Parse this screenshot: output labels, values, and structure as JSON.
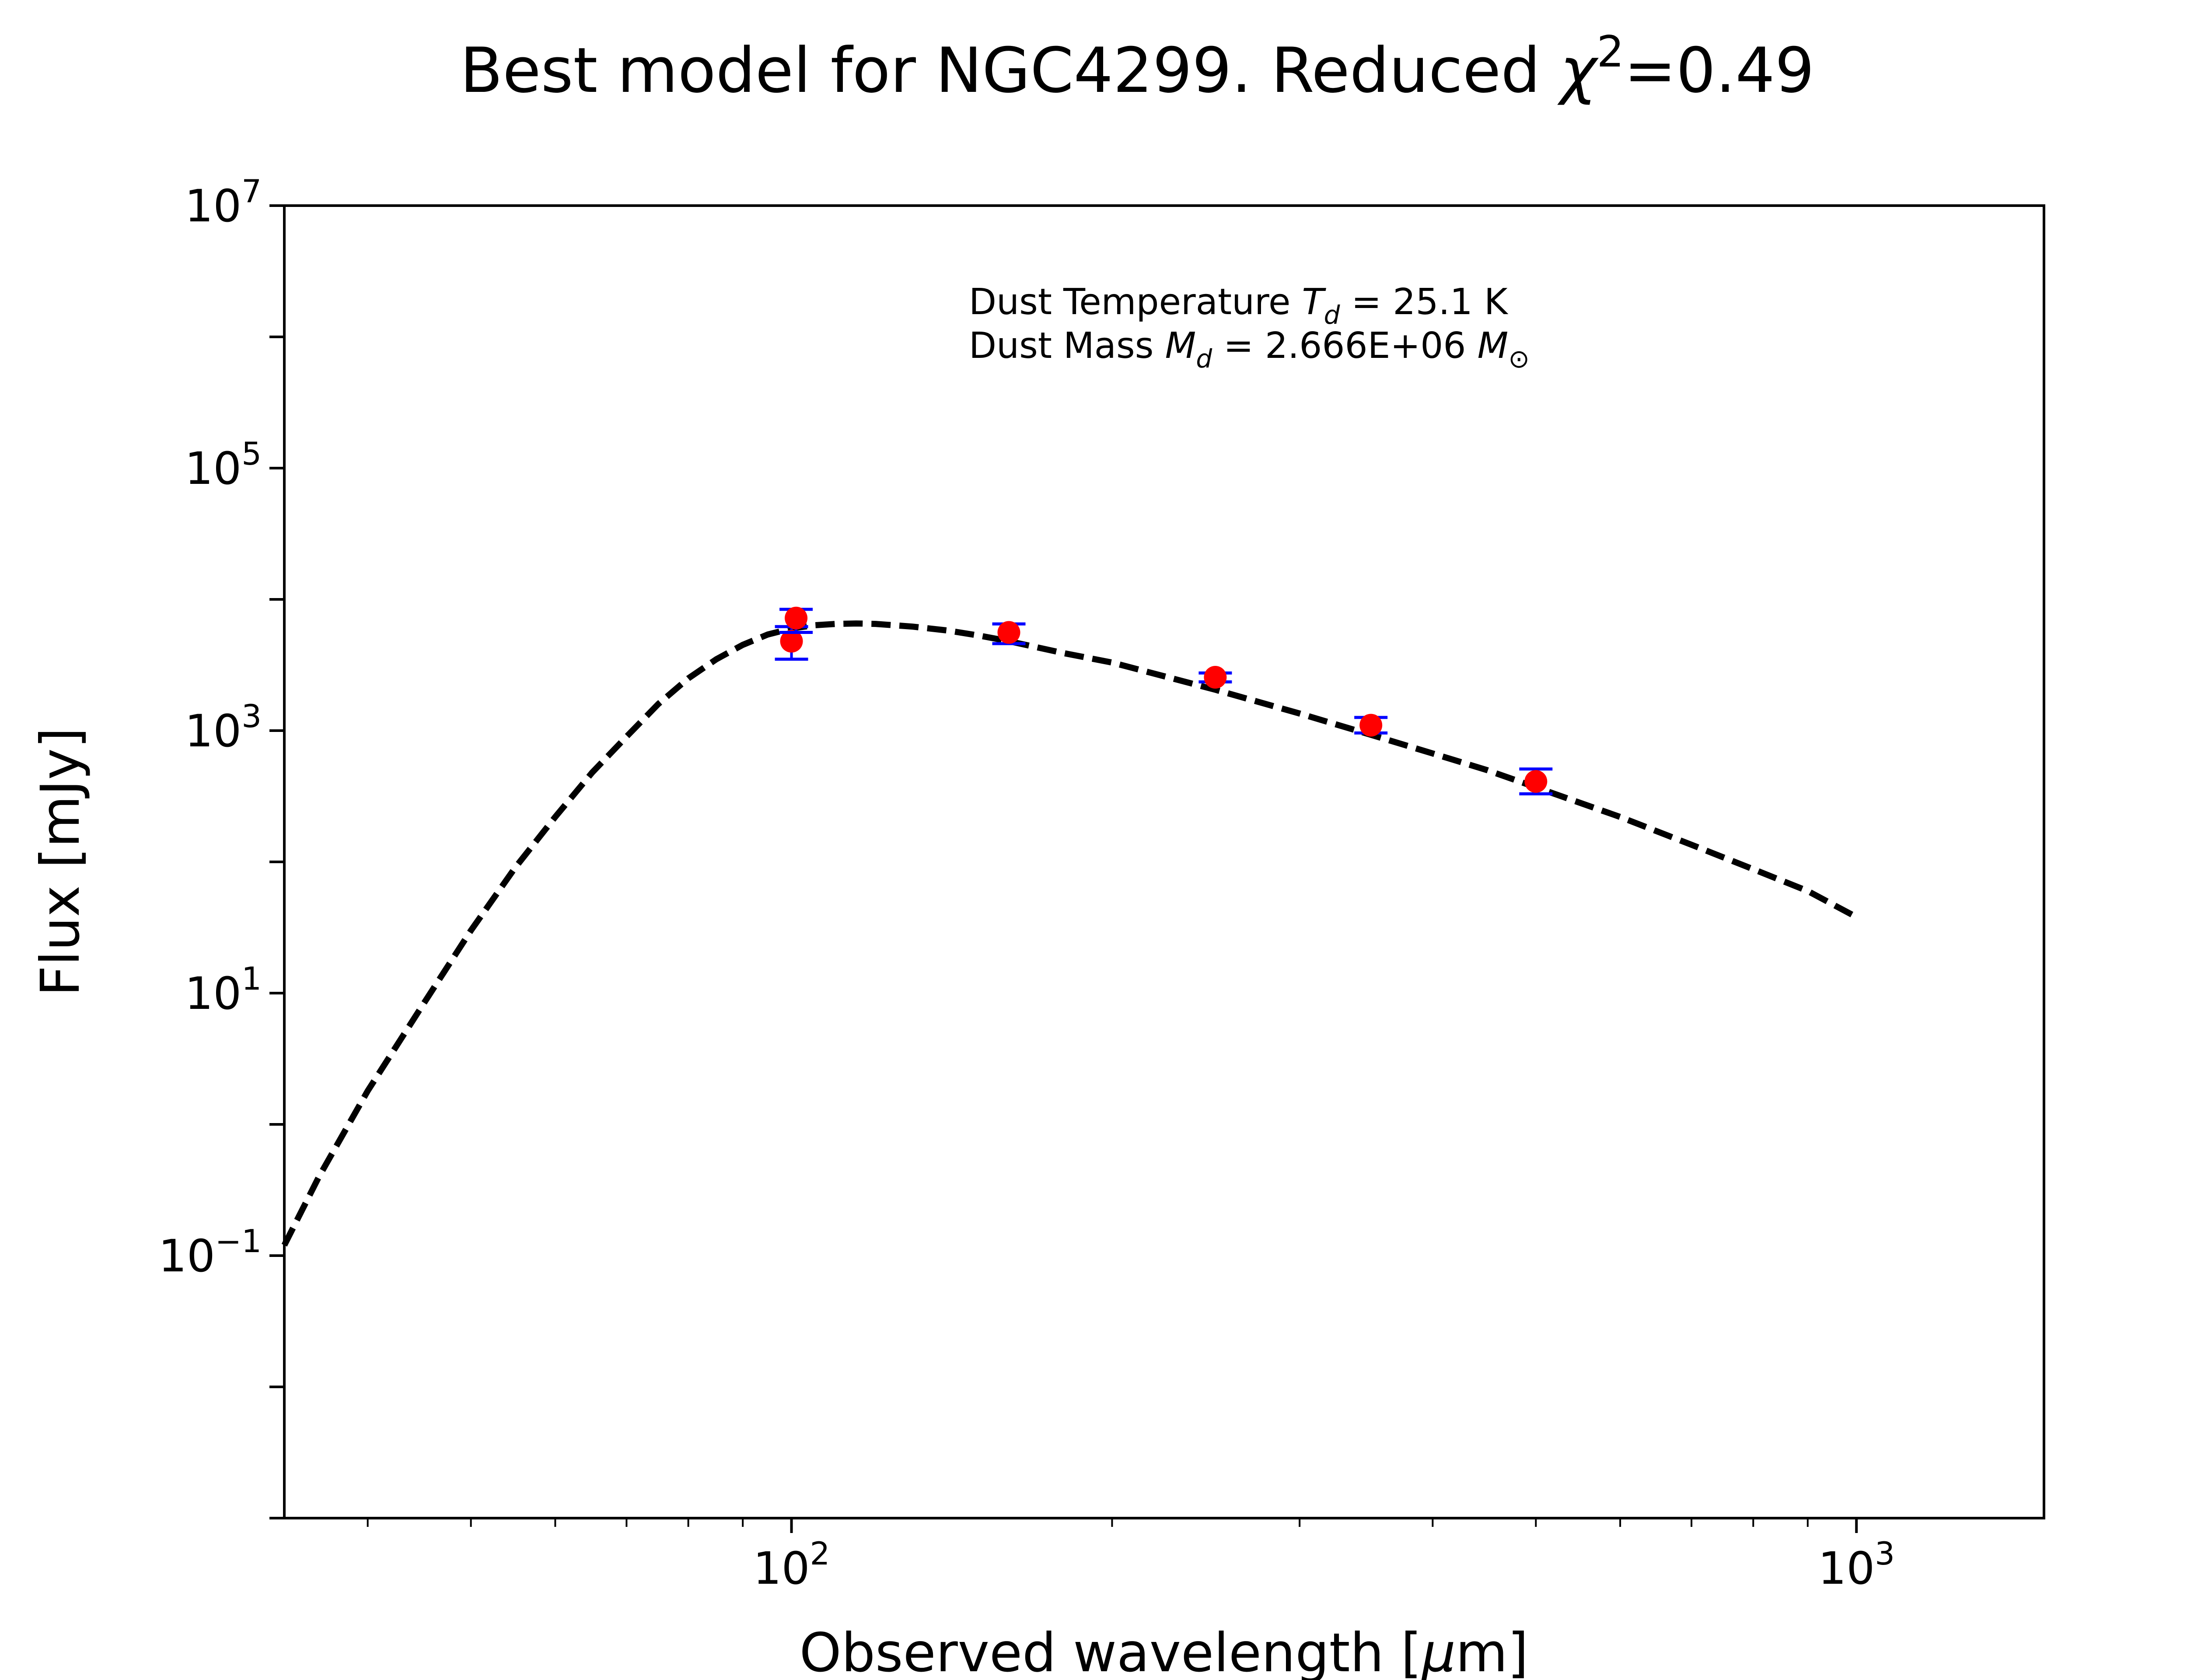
{
  "chart_data": {
    "type": "scatter",
    "title": {
      "prefix": "Best model for NGC4299. Reduced ",
      "symbol": "χ",
      "superscript": "2",
      "value": "=0.49"
    },
    "xlabel": {
      "prefix": "Observed wavelength [",
      "mu": "μ",
      "suffix": "m]"
    },
    "ylabel": "Flux [mJy]",
    "xscale": "log",
    "yscale": "log",
    "xlim": [
      33.4,
      1500
    ],
    "ylim": [
      0.001,
      10000000
    ],
    "x_ticks": [
      {
        "base": "10",
        "exp": "2",
        "value": 100
      },
      {
        "base": "10",
        "exp": "3",
        "value": 1000
      }
    ],
    "y_ticks": [
      {
        "base": "10",
        "exp": "−1",
        "value": 0.1
      },
      {
        "base": "10",
        "exp": "1",
        "value": 10
      },
      {
        "base": "10",
        "exp": "3",
        "value": 1000
      },
      {
        "base": "10",
        "exp": "5",
        "value": 100000
      },
      {
        "base": "10",
        "exp": "7",
        "value": 10000000
      }
    ],
    "annotations": [
      {
        "prefix": "Dust Temperature ",
        "sym": "T",
        "sub": "d",
        "suffix": " = 25.1 K"
      },
      {
        "prefix": "Dust Mass ",
        "sym": "M",
        "sub": "d",
        "suffix": " = 2.666E+06 ",
        "sym2": "M",
        "sub2": "⊙"
      }
    ],
    "series": [
      {
        "kind": "model",
        "style": "dashed",
        "color": "#000000",
        "x": [
          33.4,
          36,
          40,
          45,
          50,
          55,
          60,
          65,
          70,
          75,
          80,
          85,
          90,
          95,
          100,
          105,
          110,
          115,
          120,
          130,
          140,
          150,
          160,
          180,
          200,
          250,
          300,
          350,
          400,
          450,
          500,
          600,
          700,
          800,
          900,
          1000
        ],
        "y": [
          0.12,
          0.4,
          1.8,
          8,
          30,
          90,
          220,
          480,
          900,
          1600,
          2500,
          3500,
          4500,
          5400,
          6000,
          6350,
          6500,
          6550,
          6500,
          6200,
          5800,
          5300,
          4800,
          3900,
          3300,
          2050,
          1350,
          930,
          670,
          500,
          370,
          220,
          135,
          88,
          60,
          38
        ]
      },
      {
        "kind": "observed",
        "marker": "circle",
        "color": "#ff0000",
        "errcolor": "#0000ff",
        "points": [
          {
            "x": 100,
            "y": 4800,
            "lo": 3500,
            "hi": 6200
          },
          {
            "x": 101,
            "y": 7200,
            "lo": 5600,
            "hi": 8400
          },
          {
            "x": 160,
            "y": 5600,
            "lo": 4600,
            "hi": 6500
          },
          {
            "x": 250,
            "y": 2550,
            "lo": 2350,
            "hi": 2750
          },
          {
            "x": 350,
            "y": 1100,
            "lo": 960,
            "hi": 1260
          },
          {
            "x": 500,
            "y": 410,
            "lo": 330,
            "hi": 510
          }
        ]
      }
    ],
    "grid": false,
    "legend": "none"
  }
}
